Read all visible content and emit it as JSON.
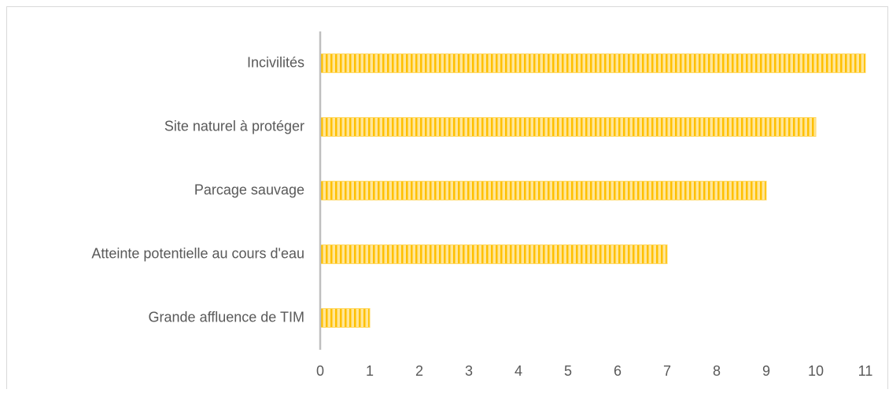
{
  "chart_data": {
    "type": "bar",
    "orientation": "horizontal",
    "categories": [
      "Incivilités",
      "Site naturel à protéger",
      "Parcage sauvage",
      "Atteinte potentielle au cours d'eau",
      "Grande affluence de TIM"
    ],
    "values": [
      11,
      10,
      9,
      7,
      1
    ],
    "color": "#ffc000",
    "xlim": [
      0,
      11
    ],
    "xticks": [
      0,
      1,
      2,
      3,
      4,
      5,
      6,
      7,
      8,
      9,
      10,
      11
    ],
    "grid": false
  }
}
